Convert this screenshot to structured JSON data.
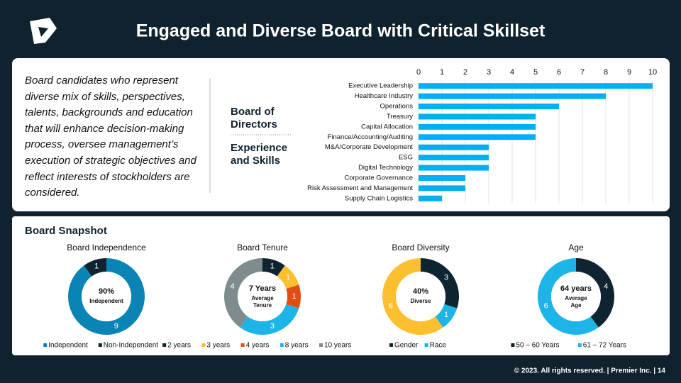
{
  "header": {
    "title": "Engaged and Diverse Board with Critical Skillset"
  },
  "intro": "Board candidates who represent diverse mix of skills, perspectives, talents, backgrounds and education that will enhance decision-making process, oversee management’s execution of strategic objectives and reflect interests of stockholders are considered.",
  "section_title": "Board Snapshot",
  "footer": "© 2023. All rights reserved.  |  Premier Inc.  |  14",
  "chart_data": [
    {
      "type": "bar",
      "title_lines": [
        "Board of",
        "Directors"
      ],
      "subtitle_lines": [
        "Experience",
        "and Skills"
      ],
      "categories": [
        "Executive Leadership",
        "Healthcare Industry",
        "Operations",
        "Treasury",
        "Capital Allocation",
        "Finance/Accounting/Auditing",
        "M&A/Corporate Development",
        "ESG",
        "Digital Technology",
        "Corporate Governance",
        "Risk Assessment and Management",
        "Supply Chain Logistics"
      ],
      "values": [
        10,
        8,
        6,
        5,
        5,
        5,
        3,
        3,
        3,
        2,
        2,
        1
      ],
      "color": "#00b0f0",
      "xlim": [
        0,
        10
      ],
      "xticks": [
        0,
        1,
        2,
        3,
        4,
        5,
        6,
        7,
        8,
        9,
        10
      ],
      "grid": true
    },
    {
      "type": "donut",
      "title": "Board Independence",
      "categories": [
        "Independent",
        "Non-Independent"
      ],
      "values": [
        9,
        1
      ],
      "colors": [
        "#0a84b5",
        "#0e2431"
      ],
      "center_label": "90%",
      "center_sublabel": [
        "Independent"
      ]
    },
    {
      "type": "donut",
      "title": "Board Tenure",
      "categories": [
        "2 years",
        "3 years",
        "4 years",
        "8 years",
        "10 years"
      ],
      "values": [
        1,
        1,
        1,
        3,
        4
      ],
      "colors": [
        "#0e2431",
        "#fbbf2f",
        "#e04e14",
        "#1db4e8",
        "#7f8c8d"
      ],
      "center_label": "7 Years",
      "center_sublabel": [
        "Average",
        "Tenure"
      ]
    },
    {
      "type": "donut",
      "title": "Board Diversity",
      "categories": [
        "Gender",
        "Race",
        null
      ],
      "values": [
        3,
        1,
        6
      ],
      "colors": [
        "#0e2431",
        "#1db4e8",
        "#fbbf2f"
      ],
      "center_label": "40%",
      "center_sublabel": [
        "Diverse"
      ]
    },
    {
      "type": "donut",
      "title": "Age",
      "categories": [
        "50  – 60 Years",
        "61 – 72 Years"
      ],
      "values": [
        4,
        6
      ],
      "colors": [
        "#0e2431",
        "#1db4e8"
      ],
      "center_label": "64 years",
      "center_sublabel": [
        "Average",
        "Age"
      ]
    }
  ]
}
